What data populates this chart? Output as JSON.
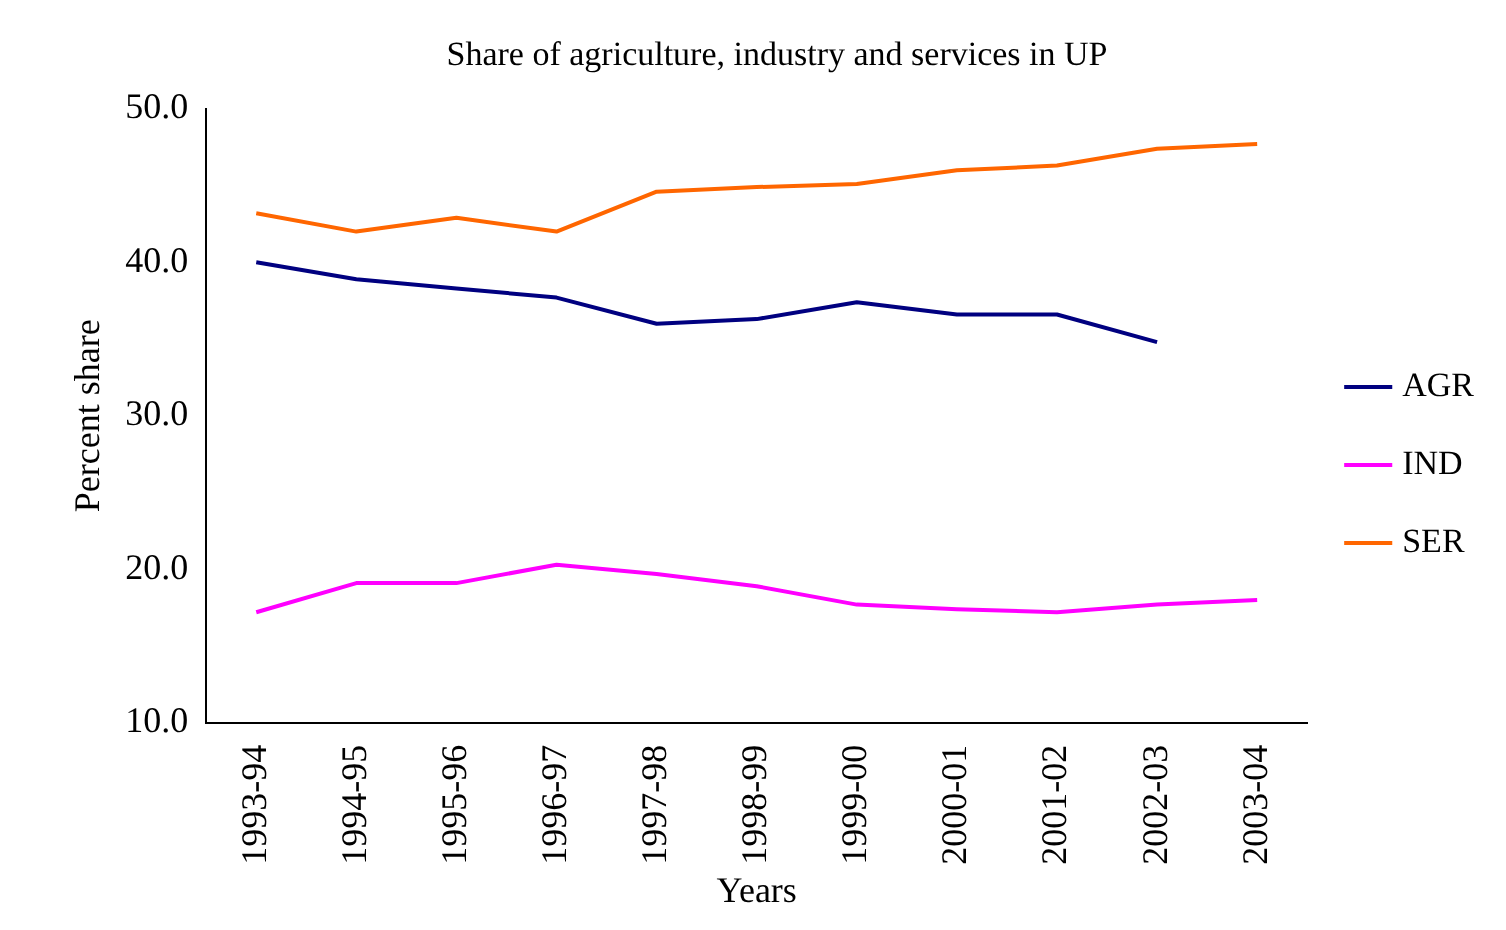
{
  "chart_data": {
    "type": "line",
    "title": "Share of agriculture, industry and services in UP",
    "xlabel": "Years",
    "ylabel": "Percent share",
    "categories": [
      "1993-94",
      "1994-95",
      "1995-96",
      "1996-97",
      "1997-98",
      "1998-99",
      "1999-00",
      "2000-01",
      "2001-02",
      "2002-03",
      "2003-04"
    ],
    "series": [
      {
        "name": "AGR",
        "color": "#000080",
        "values": [
          40.0,
          38.9,
          38.3,
          37.7,
          36.0,
          36.3,
          37.4,
          36.6,
          36.6,
          34.8,
          null
        ]
      },
      {
        "name": "IND",
        "color": "#ff00ff",
        "values": [
          17.2,
          19.1,
          19.1,
          20.3,
          19.7,
          18.9,
          17.7,
          17.4,
          17.2,
          17.7,
          18.0
        ]
      },
      {
        "name": "SER",
        "color": "#ff6600",
        "values": [
          43.2,
          42.0,
          42.9,
          42.0,
          44.6,
          44.9,
          45.1,
          46.0,
          46.3,
          47.4,
          47.7
        ]
      }
    ],
    "ylim": [
      10,
      50
    ],
    "yticks": [
      {
        "value": 10,
        "label": "10.0"
      },
      {
        "value": 20,
        "label": "20.0"
      },
      {
        "value": 30,
        "label": "30.0"
      },
      {
        "value": 40,
        "label": "40.0"
      },
      {
        "value": 50,
        "label": "50.0"
      }
    ],
    "grid": false,
    "legend": "right",
    "marker": "none",
    "line_style": "solid"
  }
}
